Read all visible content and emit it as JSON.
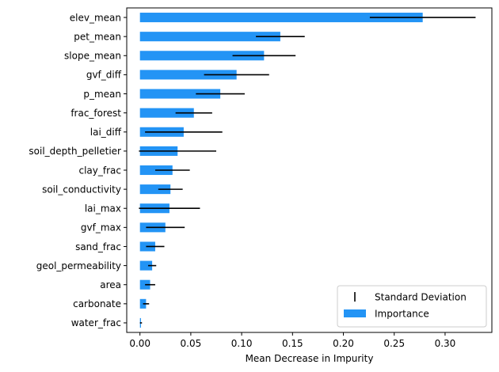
{
  "chart_data": {
    "type": "bar",
    "orientation": "horizontal",
    "xlabel": "Mean Decrease in Impurity",
    "ylabel": "",
    "title": "",
    "xlim": [
      -0.013,
      0.346
    ],
    "xticks": [
      0.0,
      0.05,
      0.1,
      0.15,
      0.2,
      0.25,
      0.3
    ],
    "xtick_labels": [
      "0.00",
      "0.05",
      "0.10",
      "0.15",
      "0.20",
      "0.25",
      "0.30"
    ],
    "grid": false,
    "legend": {
      "placement": "lower-right",
      "entries": [
        {
          "name": "Standard Deviation",
          "kind": "errorbar",
          "color": "#000000"
        },
        {
          "name": "Importance",
          "kind": "bar",
          "color": "#2394f5"
        }
      ]
    },
    "bar_color": "#2394f5",
    "error_color": "#000000",
    "categories": [
      "elev_mean",
      "pet_mean",
      "slope_mean",
      "gvf_diff",
      "p_mean",
      "frac_forest",
      "lai_diff",
      "soil_depth_pelletier",
      "clay_frac",
      "soil_conductivity",
      "lai_max",
      "gvf_max",
      "sand_frac",
      "geol_permeability",
      "area",
      "carbonate",
      "water_frac"
    ],
    "series": [
      {
        "name": "Importance",
        "values": [
          0.278,
          0.138,
          0.122,
          0.095,
          0.079,
          0.053,
          0.043,
          0.037,
          0.032,
          0.03,
          0.029,
          0.025,
          0.015,
          0.012,
          0.01,
          0.006,
          0.001
        ],
        "std": [
          0.052,
          0.024,
          0.031,
          0.032,
          0.024,
          0.018,
          0.038,
          0.038,
          0.017,
          0.012,
          0.03,
          0.019,
          0.009,
          0.004,
          0.005,
          0.003,
          0.001
        ]
      }
    ]
  }
}
